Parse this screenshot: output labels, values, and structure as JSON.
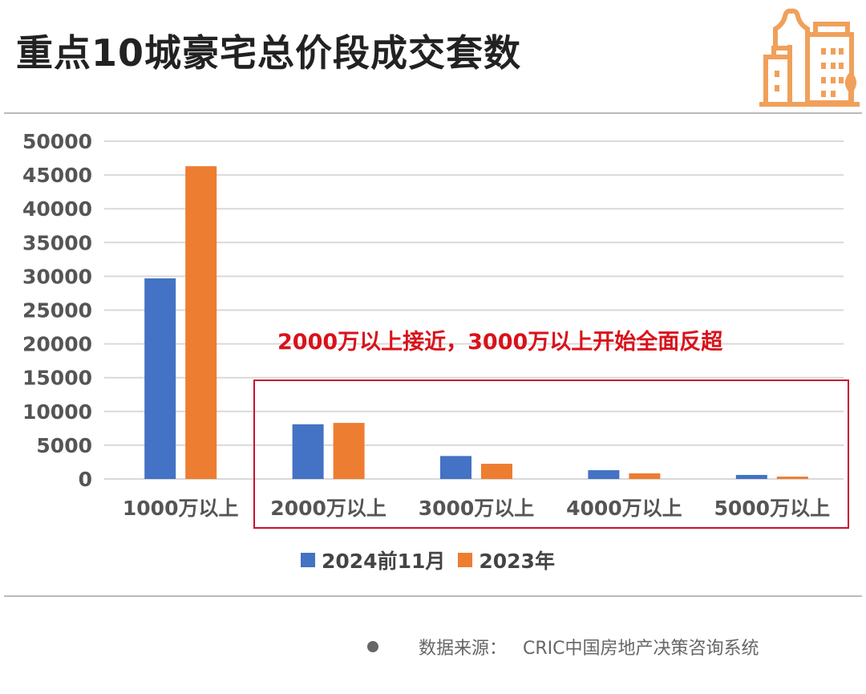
{
  "title": "重点10城豪宅总价段成交套数",
  "annotation": "2000万以上接近，3000万以上开始全面反超",
  "source": {
    "label": "数据来源：",
    "value": "CRIC中国房地产决策咨询系统"
  },
  "colors": {
    "series1": "#4472c4",
    "series2": "#ed7d31",
    "annotation": "#d9121b",
    "logo": "#f0a05a"
  },
  "chart_data": {
    "type": "bar",
    "categories": [
      "1000万以上",
      "2000万以上",
      "3000万以上",
      "4000万以上",
      "5000万以上"
    ],
    "series": [
      {
        "name": "2024前11月",
        "values": [
          29700,
          8100,
          3400,
          1300,
          600
        ]
      },
      {
        "name": "2023年",
        "values": [
          46300,
          8300,
          2250,
          830,
          350
        ]
      }
    ],
    "ylim": [
      0,
      50000
    ],
    "yticks": [
      "0",
      "5000",
      "10000",
      "15000",
      "20000",
      "25000",
      "30000",
      "35000",
      "40000",
      "45000",
      "50000"
    ],
    "grid": true,
    "legend": "bottom"
  }
}
